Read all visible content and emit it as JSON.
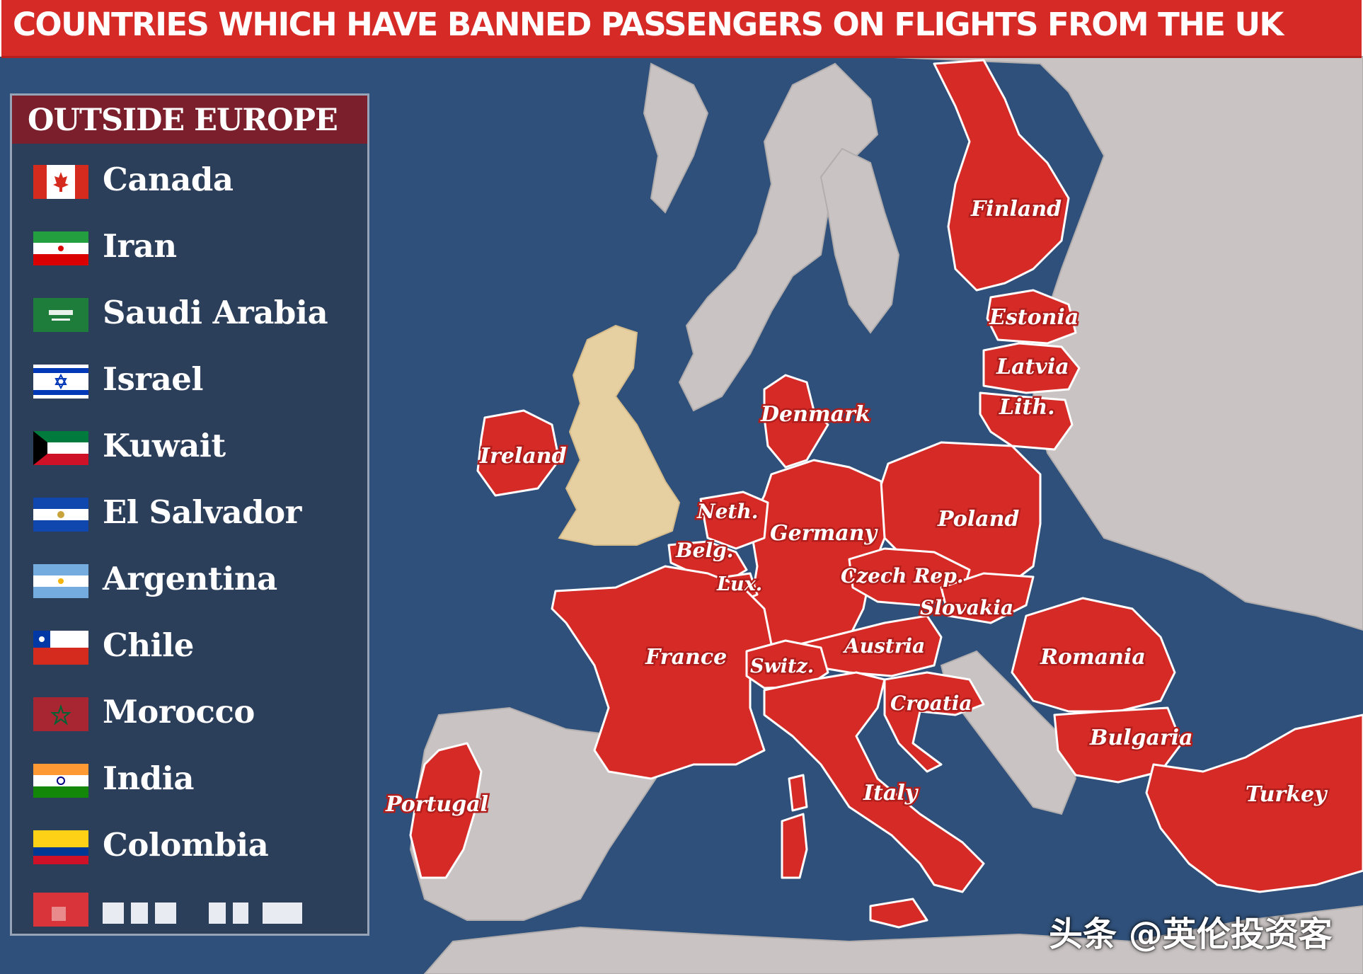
{
  "header": {
    "title": "COUNTRIES WHICH HAVE BANNED PASSENGERS ON FLIGHTS FROM THE UK"
  },
  "legend": {
    "title": "OUTSIDE EUROPE",
    "countries": [
      {
        "name": "Canada",
        "flag": "canada-flag"
      },
      {
        "name": "Iran",
        "flag": "iran-flag"
      },
      {
        "name": "Saudi Arabia",
        "flag": "saudi-arabia-flag"
      },
      {
        "name": "Israel",
        "flag": "israel-flag"
      },
      {
        "name": "Kuwait",
        "flag": "kuwait-flag"
      },
      {
        "name": "El Salvador",
        "flag": "el-salvador-flag"
      },
      {
        "name": "Argentina",
        "flag": "argentina-flag"
      },
      {
        "name": "Chile",
        "flag": "chile-flag"
      },
      {
        "name": "Morocco",
        "flag": "morocco-flag"
      },
      {
        "name": "India",
        "flag": "india-flag"
      },
      {
        "name": "Colombia",
        "flag": "colombia-flag"
      }
    ]
  },
  "map": {
    "labels": {
      "finland": "Finland",
      "estonia": "Estonia",
      "latvia": "Latvia",
      "lithuania": "Lith.",
      "denmark": "Denmark",
      "ireland": "Ireland",
      "netherlands": "Neth.",
      "germany": "Germany",
      "poland": "Poland",
      "belgium": "Belg.",
      "czech": "Czech Rep.",
      "luxembourg": "Lux.",
      "slovakia": "Slovakia",
      "france": "France",
      "austria": "Austria",
      "romania": "Romania",
      "switzerland": "Switz.",
      "croatia": "Croatia",
      "bulgaria": "Bulgaria",
      "italy": "Italy",
      "turkey": "Turkey",
      "portugal": "Portugal"
    },
    "colors": {
      "sea": "#2f507a",
      "land": "#c9c3c3",
      "banned": "#d62a27",
      "uk": "#e6cfa1"
    }
  },
  "watermark": "头条 @英伦投资客"
}
